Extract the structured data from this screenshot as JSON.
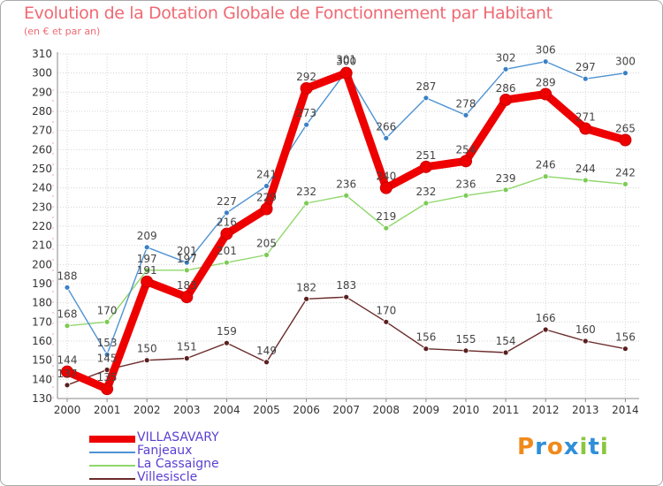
{
  "chart_data": {
    "type": "line",
    "title": "Evolution de la Dotation Globale de Fonctionnement par Habitant",
    "subtitle": "(en € et par an)",
    "x": [
      "2000",
      "2001",
      "2002",
      "2003",
      "2004",
      "2005",
      "2006",
      "2007",
      "2008",
      "2009",
      "2010",
      "2011",
      "2012",
      "2013",
      "2014"
    ],
    "ylim": [
      130,
      310
    ],
    "yticks": [
      130,
      140,
      150,
      160,
      170,
      180,
      190,
      200,
      210,
      220,
      230,
      240,
      250,
      260,
      270,
      280,
      290,
      300,
      310
    ],
    "grid": true,
    "legend_position": "bottom-left",
    "series": [
      {
        "name": "VILLASAVARY",
        "color": "#ee0000",
        "values": [
          144,
          135,
          191,
          183,
          216,
          229,
          292,
          300,
          240,
          251,
          254,
          286,
          289,
          271,
          265
        ]
      },
      {
        "name": "Fanjeaux",
        "color": "#4f93d3",
        "values": [
          188,
          153,
          209,
          201,
          227,
          241,
          273,
          301,
          266,
          287,
          278,
          302,
          306,
          297,
          300
        ]
      },
      {
        "name": "La Cassaigne",
        "color": "#8fd76b",
        "values": [
          168,
          170,
          197,
          197,
          201,
          205,
          232,
          236,
          219,
          232,
          236,
          239,
          246,
          244,
          242
        ]
      },
      {
        "name": "Villesiscle",
        "color": "#6b2a2a",
        "values": [
          137,
          145,
          150,
          151,
          159,
          149,
          182,
          183,
          170,
          156,
          155,
          154,
          166,
          160,
          156
        ]
      }
    ]
  },
  "logo": {
    "letters": [
      "P",
      "r",
      "o",
      "x",
      "i",
      "t",
      "i"
    ],
    "colors": [
      "#f08a1c",
      "#2f8fd8",
      "#f08a1c",
      "#2f8fd8",
      "#8cc63f",
      "#2f8fd8",
      "#8cc63f"
    ]
  }
}
